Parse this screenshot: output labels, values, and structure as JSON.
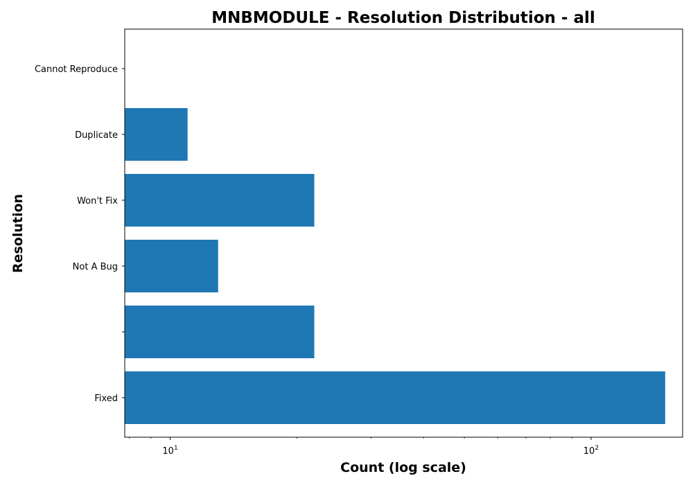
{
  "chart_data": {
    "type": "bar",
    "orientation": "horizontal",
    "title": "MNBMODULE - Resolution Distribution - all",
    "xlabel": "Count (log scale)",
    "ylabel": "Resolution",
    "xscale": "log",
    "xlim": [
      7.8,
      165
    ],
    "x_ticks": [
      {
        "base": "10",
        "exp": "1",
        "value": 10
      },
      {
        "base": "10",
        "exp": "2",
        "value": 100
      }
    ],
    "categories": [
      "Cannot Reproduce",
      "Duplicate",
      "Won't Fix",
      "Not A Bug",
      "",
      "Fixed"
    ],
    "values": [
      7,
      11,
      22,
      13,
      22,
      150
    ],
    "grid": false,
    "bar_color": "#1f77b4"
  }
}
